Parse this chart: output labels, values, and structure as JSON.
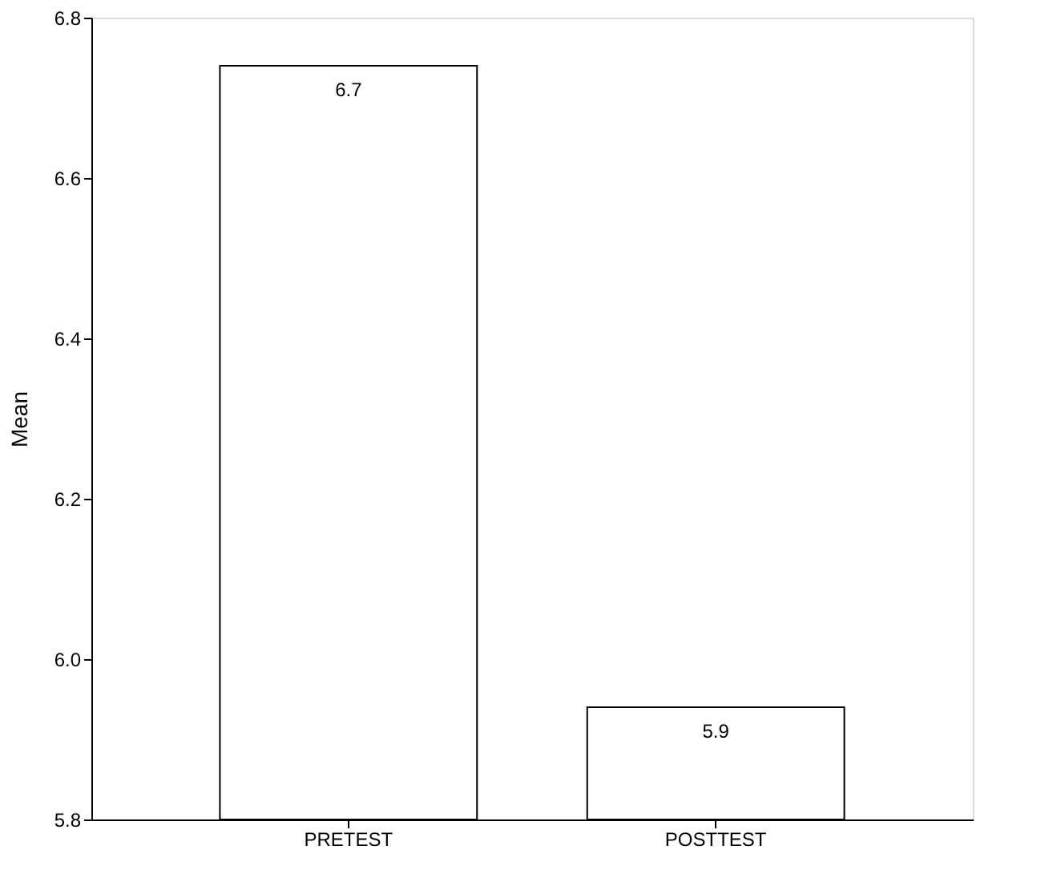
{
  "chart_data": {
    "type": "bar",
    "ylabel": "Mean",
    "categories": [
      "PRETEST",
      "POSTTEST"
    ],
    "values": [
      6.74,
      5.94
    ],
    "value_labels": [
      "6.7",
      "5.9"
    ],
    "color": "#ffffff",
    "ylim": [
      5.8,
      6.8
    ],
    "yticks": [
      5.8,
      {
        "value": 6.0,
        "label": "6.0"
      },
      6.2,
      6.4,
      6.6,
      {
        "value": 6.8,
        "label": "6.8"
      }
    ],
    "grid": false
  }
}
